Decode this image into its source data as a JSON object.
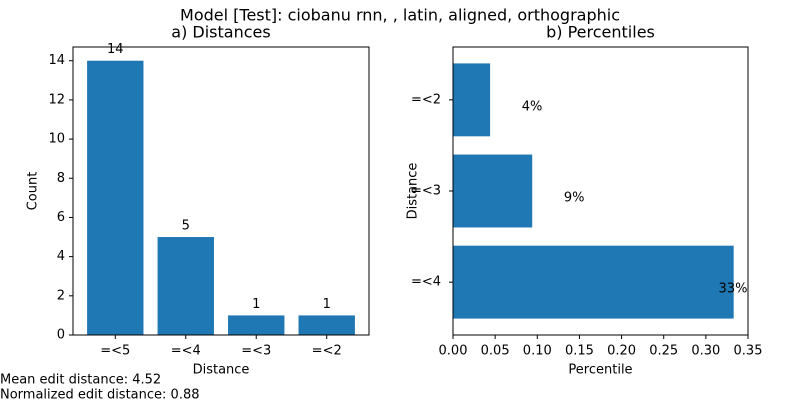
{
  "title": "Model [Test]: ciobanu rnn, , latin, aligned, orthographic",
  "annotations": [
    "Mean edit distance: 4.52",
    "Normalized edit distance: 0.88"
  ],
  "chart_data": [
    {
      "type": "bar",
      "title": "a) Distances",
      "x_label": "Distance",
      "y_label": "Count",
      "categories": [
        "=<5",
        "=<4",
        "=<3",
        "=<2"
      ],
      "values": [
        14,
        5,
        1,
        1
      ],
      "color": "#1f77b4",
      "ylim": [
        0,
        14.7
      ],
      "yticks": [
        0,
        2,
        4,
        6,
        8,
        10,
        12,
        14
      ]
    },
    {
      "type": "bar",
      "orientation": "horizontal",
      "title": "b) Percentiles",
      "x_label": "Percentile",
      "y_label": "Distance",
      "categories": [
        "=<4",
        "=<3",
        "=<2"
      ],
      "values": [
        0.333,
        0.094,
        0.044
      ],
      "value_labels": [
        "33%",
        "9%",
        "4%"
      ],
      "color": "#1f77b4",
      "xlim": [
        0,
        0.35
      ],
      "xticks": [
        {
          "value": 0,
          "label": "0.00"
        },
        {
          "value": 0.05,
          "label": "0.05"
        },
        {
          "value": 0.1,
          "label": "0.10"
        },
        {
          "value": 0.15,
          "label": "0.15"
        },
        {
          "value": 0.2,
          "label": "0.20"
        },
        {
          "value": 0.25,
          "label": "0.25"
        },
        {
          "value": 0.3,
          "label": "0.30"
        },
        {
          "value": 0.35,
          "label": "0.35"
        }
      ]
    }
  ]
}
